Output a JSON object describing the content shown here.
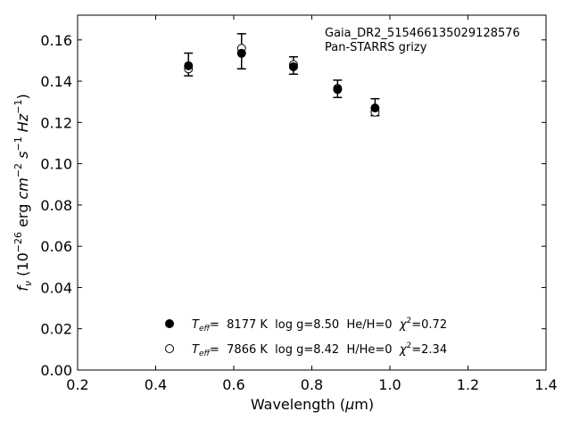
{
  "chart_data": {
    "type": "scatter",
    "xlabel": "Wavelength (μm)",
    "ylabel": "f_ν (10^−26 erg cm^−2 s^−1 Hz^−1)",
    "xlim": [
      0.2,
      1.4
    ],
    "ylim": [
      0.0,
      0.172
    ],
    "x_ticks": [
      "0.2",
      "0.4",
      "0.6",
      "0.8",
      "1.0",
      "1.2",
      "1.4"
    ],
    "y_ticks": [
      "0.00",
      "0.02",
      "0.04",
      "0.06",
      "0.08",
      "0.10",
      "0.12",
      "0.14",
      "0.16"
    ],
    "grid": false,
    "annotation": [
      "Gaia_DR2_515466135029128576",
      "Pan-STARRS grizy"
    ],
    "observed": {
      "x": [
        0.484,
        0.62,
        0.753,
        0.866,
        0.962
      ],
      "y": [
        0.1481,
        0.1545,
        0.1476,
        0.1363,
        0.1274
      ],
      "err": [
        0.0055,
        0.0085,
        0.0042,
        0.0042,
        0.0041
      ]
    },
    "series": [
      {
        "marker": "filled-circle",
        "x": [
          0.484,
          0.62,
          0.753,
          0.866,
          0.962
        ],
        "y": [
          0.1475,
          0.1535,
          0.147,
          0.136,
          0.127
        ]
      },
      {
        "marker": "open-circle",
        "x": [
          0.484,
          0.62,
          0.753,
          0.866,
          0.962
        ],
        "y": [
          0.146,
          0.1559,
          0.148,
          0.1365,
          0.125
        ]
      }
    ],
    "legend": {
      "placement": "lower-center",
      "entries": [
        {
          "marker": "filled-circle",
          "teff_label": "T",
          "teff_sub": "eff",
          "text": "=  8177 K  log g=8.50  He/H=0  ",
          "chi_label": "χ",
          "chi_sup": "2",
          "chi_value": "=0.72"
        },
        {
          "marker": "open-circle",
          "teff_label": "T",
          "teff_sub": "eff",
          "text": "=  7866 K  log g=8.42  H/He=0  ",
          "chi_label": "χ",
          "chi_sup": "2",
          "chi_value": "=2.34"
        }
      ]
    }
  }
}
